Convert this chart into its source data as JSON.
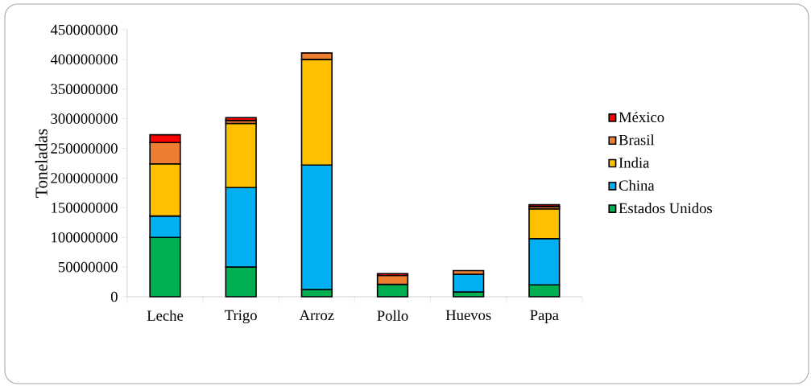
{
  "chart_data": {
    "type": "bar",
    "stacked": true,
    "ylabel": "Toneladas",
    "categories": [
      "Leche",
      "Trigo",
      "Arroz",
      "Pollo",
      "Huevos",
      "Papa"
    ],
    "series": [
      {
        "name": "Estados Unidos",
        "color": "#00b050",
        "values": [
          100000000,
          50000000,
          12000000,
          21000000,
          8000000,
          20000000
        ]
      },
      {
        "name": "China",
        "color": "#00b0f0",
        "values": [
          36000000,
          134000000,
          210000000,
          0,
          30000000,
          78000000
        ]
      },
      {
        "name": "India",
        "color": "#ffc000",
        "values": [
          88000000,
          108000000,
          178000000,
          0,
          null,
          50000000
        ]
      },
      {
        "name": "Brasil",
        "color": "#ed7d31",
        "values": [
          36000000,
          5000000,
          11000000,
          15000000,
          6000000,
          4000000
        ]
      },
      {
        "name": "México",
        "color": "#ff0000",
        "values": [
          13000000,
          5000000,
          0,
          3000000,
          null,
          3000000
        ]
      }
    ],
    "ylim": [
      0,
      450000000
    ],
    "yticks": [
      0,
      50000000,
      100000000,
      150000000,
      200000000,
      250000000,
      300000000,
      350000000,
      400000000,
      450000000
    ],
    "legend": "right",
    "grid": false
  }
}
